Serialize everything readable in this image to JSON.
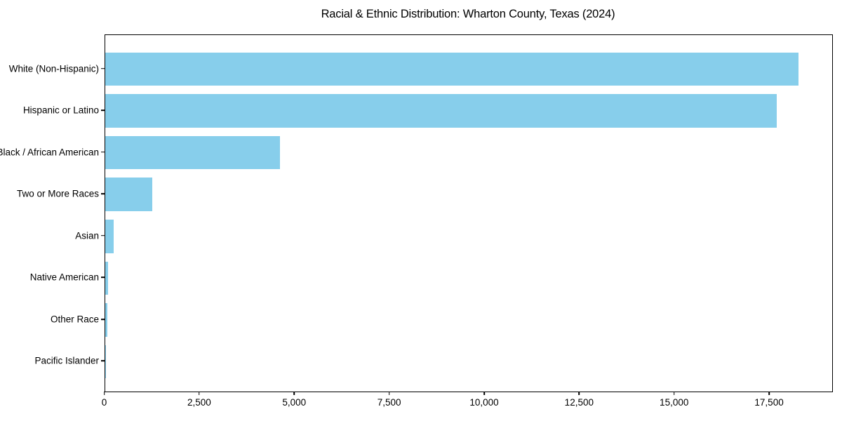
{
  "title": "Racial & Ethnic Distribution: Wharton County, Texas (2024)",
  "colors": {
    "bar": "#87CEEB",
    "axis": "#000000",
    "background": "#FFFFFF",
    "text": "#000000"
  },
  "chart_data": {
    "type": "bar",
    "orientation": "horizontal",
    "title": "Racial & Ethnic Distribution: Wharton County, Texas (2024)",
    "xlabel": "",
    "ylabel": "",
    "categories": [
      "White (Non-Hispanic)",
      "Hispanic or Latino",
      "Black / African American",
      "Two or More Races",
      "Asian",
      "Native American",
      "Other Race",
      "Pacific Islander"
    ],
    "values": [
      18250,
      17680,
      4600,
      1250,
      225,
      90,
      60,
      10
    ],
    "bar_color": "#87CEEB",
    "xlim": [
      0,
      19170
    ],
    "x_ticks": [
      0,
      2500,
      5000,
      7500,
      10000,
      12500,
      15000,
      17500
    ],
    "x_tick_labels": [
      "0",
      "2,500",
      "5,000",
      "7,500",
      "10,000",
      "12,500",
      "15,000",
      "17,500"
    ],
    "grid": false,
    "legend": null
  }
}
